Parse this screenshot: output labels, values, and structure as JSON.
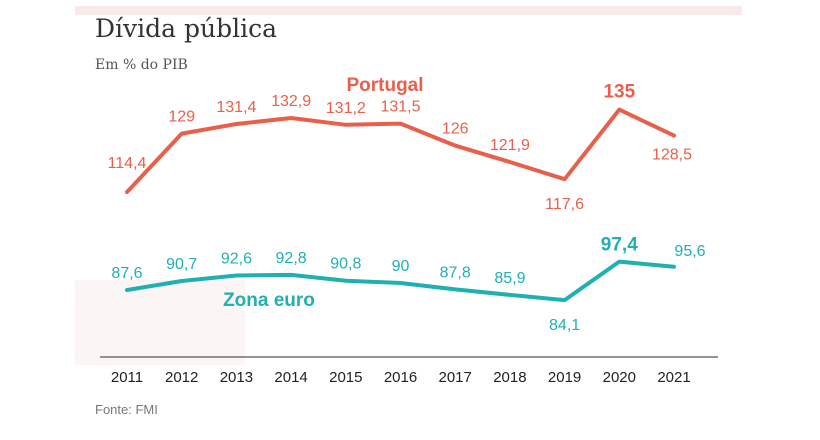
{
  "title": "Dívida pública",
  "subtitle": "Em % do PIB",
  "source": "Fonte: FMI",
  "colors": {
    "portugal": "#e8604c",
    "zona_euro": "#21b0b0",
    "axis": "#555555"
  },
  "chart_data": {
    "type": "line",
    "title": "Dívida pública",
    "subtitle": "Em % do PIB",
    "x": [
      "2011",
      "2012",
      "2013",
      "2014",
      "2015",
      "2016",
      "2017",
      "2018",
      "2019",
      "2020",
      "2021"
    ],
    "series": [
      {
        "name": "Portugal",
        "values": [
          114.4,
          129,
          131.4,
          132.9,
          131.2,
          131.5,
          126,
          121.9,
          117.6,
          135,
          128.5
        ],
        "labels": [
          "114,4",
          "129",
          "131,4",
          "132,9",
          "131,2",
          "131,5",
          "126",
          "121,9",
          "117,6",
          "135",
          "128,5"
        ],
        "highlight_index": 9
      },
      {
        "name": "Zona euro",
        "values": [
          87.6,
          90.7,
          92.6,
          92.8,
          90.8,
          90,
          87.8,
          85.9,
          84.1,
          97.4,
          95.6
        ],
        "labels": [
          "87,6",
          "90,7",
          "92,6",
          "92,8",
          "90,8",
          "90",
          "87,8",
          "85,9",
          "84,1",
          "97,4",
          "95,6"
        ],
        "highlight_index": 9
      }
    ],
    "grid": false,
    "legend": "inline labels"
  }
}
